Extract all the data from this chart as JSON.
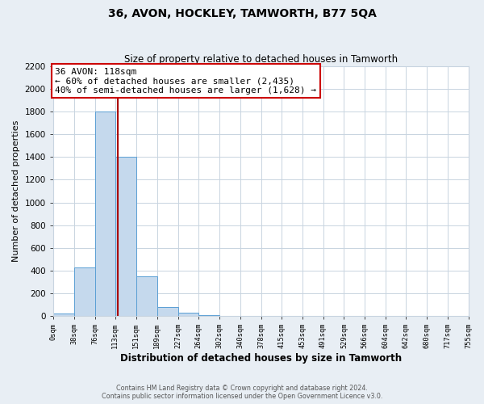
{
  "title": "36, AVON, HOCKLEY, TAMWORTH, B77 5QA",
  "subtitle": "Size of property relative to detached houses in Tamworth",
  "xlabel": "Distribution of detached houses by size in Tamworth",
  "ylabel": "Number of detached properties",
  "bin_edges": [
    0,
    38,
    76,
    113,
    151,
    189,
    227,
    264,
    302,
    340,
    378,
    415,
    453,
    491,
    529,
    566,
    604,
    642,
    680,
    717,
    755
  ],
  "bin_counts": [
    20,
    430,
    1800,
    1400,
    350,
    80,
    25,
    5,
    0,
    0,
    0,
    0,
    0,
    0,
    0,
    0,
    0,
    0,
    0,
    0
  ],
  "bar_color": "#c5d9ed",
  "bar_edge_color": "#5a9fd4",
  "property_value": 118,
  "marker_line_color": "#aa0000",
  "annotation_title": "36 AVON: 118sqm",
  "annotation_line1": "← 60% of detached houses are smaller (2,435)",
  "annotation_line2": "40% of semi-detached houses are larger (1,628) →",
  "annotation_box_color": "#ffffff",
  "annotation_box_edge": "#cc0000",
  "ylim": [
    0,
    2200
  ],
  "yticks": [
    0,
    200,
    400,
    600,
    800,
    1000,
    1200,
    1400,
    1600,
    1800,
    2000,
    2200
  ],
  "tick_labels": [
    "0sqm",
    "38sqm",
    "76sqm",
    "113sqm",
    "151sqm",
    "189sqm",
    "227sqm",
    "264sqm",
    "302sqm",
    "340sqm",
    "378sqm",
    "415sqm",
    "453sqm",
    "491sqm",
    "529sqm",
    "566sqm",
    "604sqm",
    "642sqm",
    "680sqm",
    "717sqm",
    "755sqm"
  ],
  "footer_line1": "Contains HM Land Registry data © Crown copyright and database right 2024.",
  "footer_line2": "Contains public sector information licensed under the Open Government Licence v3.0.",
  "bg_color": "#e8eef4",
  "plot_bg_color": "#ffffff",
  "grid_color": "#c8d4e0"
}
